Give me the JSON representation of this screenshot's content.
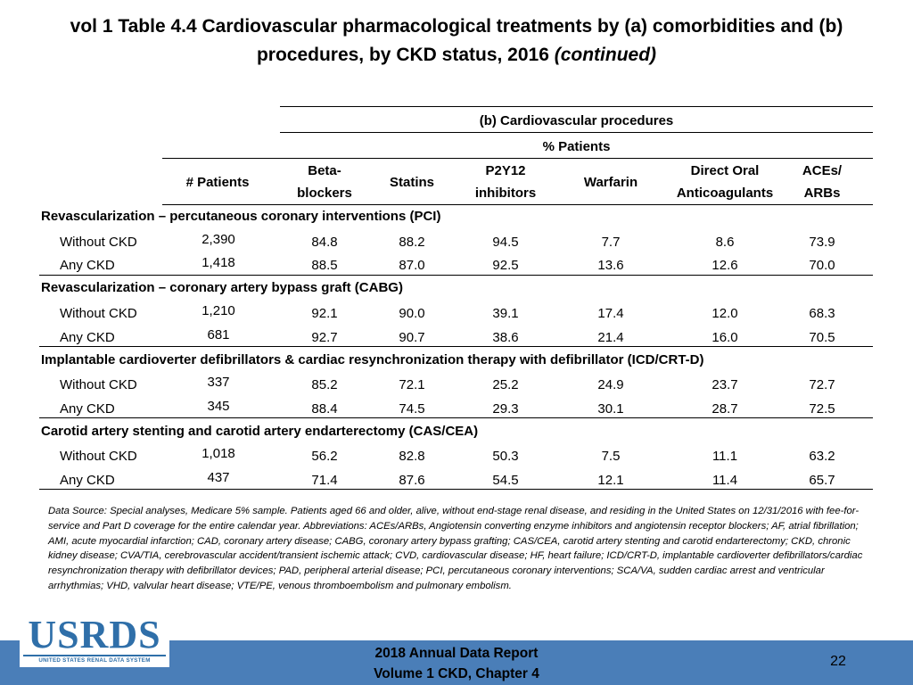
{
  "title": {
    "main": "vol 1 Table 4.4 Cardiovascular pharmacological treatments by (a) comorbidities and (b) procedures, by CKD status, 2016",
    "continued": "(continued)"
  },
  "table": {
    "section_header": "(b) Cardiovascular procedures",
    "percent_header": "% Patients",
    "columns": {
      "patients": "# Patients",
      "beta_line1": "Beta-",
      "beta_line2": "blockers",
      "statins": "Statins",
      "p2y12_line1": "P2Y12",
      "p2y12_line2": "inhibitors",
      "warfarin": "Warfarin",
      "doac_line1": "Direct Oral",
      "doac_line2": "Anticoagulants",
      "ace_line1": "ACEs/",
      "ace_line2": "ARBs"
    },
    "groups": [
      {
        "title": "Revascularization – percutaneous coronary interventions (PCI)",
        "rows": [
          {
            "label": "Without CKD",
            "patients": "2,390",
            "beta": "84.8",
            "statins": "88.2",
            "p2y12": "94.5",
            "warfarin": "7.7",
            "doac": "8.6",
            "ace": "73.9"
          },
          {
            "label": "Any CKD",
            "patients": "1,418",
            "beta": "88.5",
            "statins": "87.0",
            "p2y12": "92.5",
            "warfarin": "13.6",
            "doac": "12.6",
            "ace": "70.0"
          }
        ]
      },
      {
        "title": "Revascularization – coronary artery bypass graft (CABG)",
        "rows": [
          {
            "label": "Without CKD",
            "patients": "1,210",
            "beta": "92.1",
            "statins": "90.0",
            "p2y12": "39.1",
            "warfarin": "17.4",
            "doac": "12.0",
            "ace": "68.3"
          },
          {
            "label": "Any CKD",
            "patients": "681",
            "beta": "92.7",
            "statins": "90.7",
            "p2y12": "38.6",
            "warfarin": "21.4",
            "doac": "16.0",
            "ace": "70.5"
          }
        ]
      },
      {
        "title": "Implantable cardioverter defibrillators & cardiac resynchronization therapy with defibrillator (ICD/CRT-D)",
        "rows": [
          {
            "label": "Without CKD",
            "patients": "337",
            "beta": "85.2",
            "statins": "72.1",
            "p2y12": "25.2",
            "warfarin": "24.9",
            "doac": "23.7",
            "ace": "72.7"
          },
          {
            "label": "Any CKD",
            "patients": "345",
            "beta": "88.4",
            "statins": "74.5",
            "p2y12": "29.3",
            "warfarin": "30.1",
            "doac": "28.7",
            "ace": "72.5"
          }
        ]
      },
      {
        "title": "Carotid artery stenting and carotid artery endarterectomy (CAS/CEA)",
        "rows": [
          {
            "label": "Without CKD",
            "patients": "1,018",
            "beta": "56.2",
            "statins": "82.8",
            "p2y12": "50.3",
            "warfarin": "7.5",
            "doac": "11.1",
            "ace": "63.2"
          },
          {
            "label": "Any CKD",
            "patients": "437",
            "beta": "71.4",
            "statins": "87.6",
            "p2y12": "54.5",
            "warfarin": "12.1",
            "doac": "11.4",
            "ace": "65.7"
          }
        ]
      }
    ]
  },
  "footnote": "Data Source: Special analyses, Medicare 5% sample. Patients aged 66 and older, alive, without end-stage renal disease, and residing in the United States on 12/31/2016 with fee-for-service and Part D coverage for the entire calendar year. Abbreviations: ACEs/ARBs, Angiotensin converting enzyme inhibitors and angiotensin receptor blockers; AF, atrial fibrillation; AMI, acute myocardial infarction; CAD, coronary artery disease; CABG, coronary artery bypass grafting; CAS/CEA, carotid artery stenting and carotid endarterectomy; CKD, chronic kidney disease; CVA/TIA, cerebrovascular accident/transient ischemic attack; CVD, cardiovascular disease; HF, heart failure; ICD/CRT-D, implantable cardioverter defibrillators/cardiac resynchronization therapy with defibrillator devices; PAD, peripheral arterial disease; PCI, percutaneous coronary interventions; SCA/VA, sudden cardiac arrest and ventricular arrhythmias; VHD, valvular heart disease; VTE/PE, venous thromboembolism and pulmonary embolism.",
  "footer": {
    "logo_text": "USRDS",
    "logo_subtext": "UNITED STATES RENAL DATA SYSTEM",
    "report_line1": "2018 Annual Data Report",
    "report_line2": "Volume 1 CKD, Chapter 4",
    "page_number": "22"
  },
  "colors": {
    "footer_bar": "#4a7eb8",
    "logo": "#2f6fa9"
  }
}
